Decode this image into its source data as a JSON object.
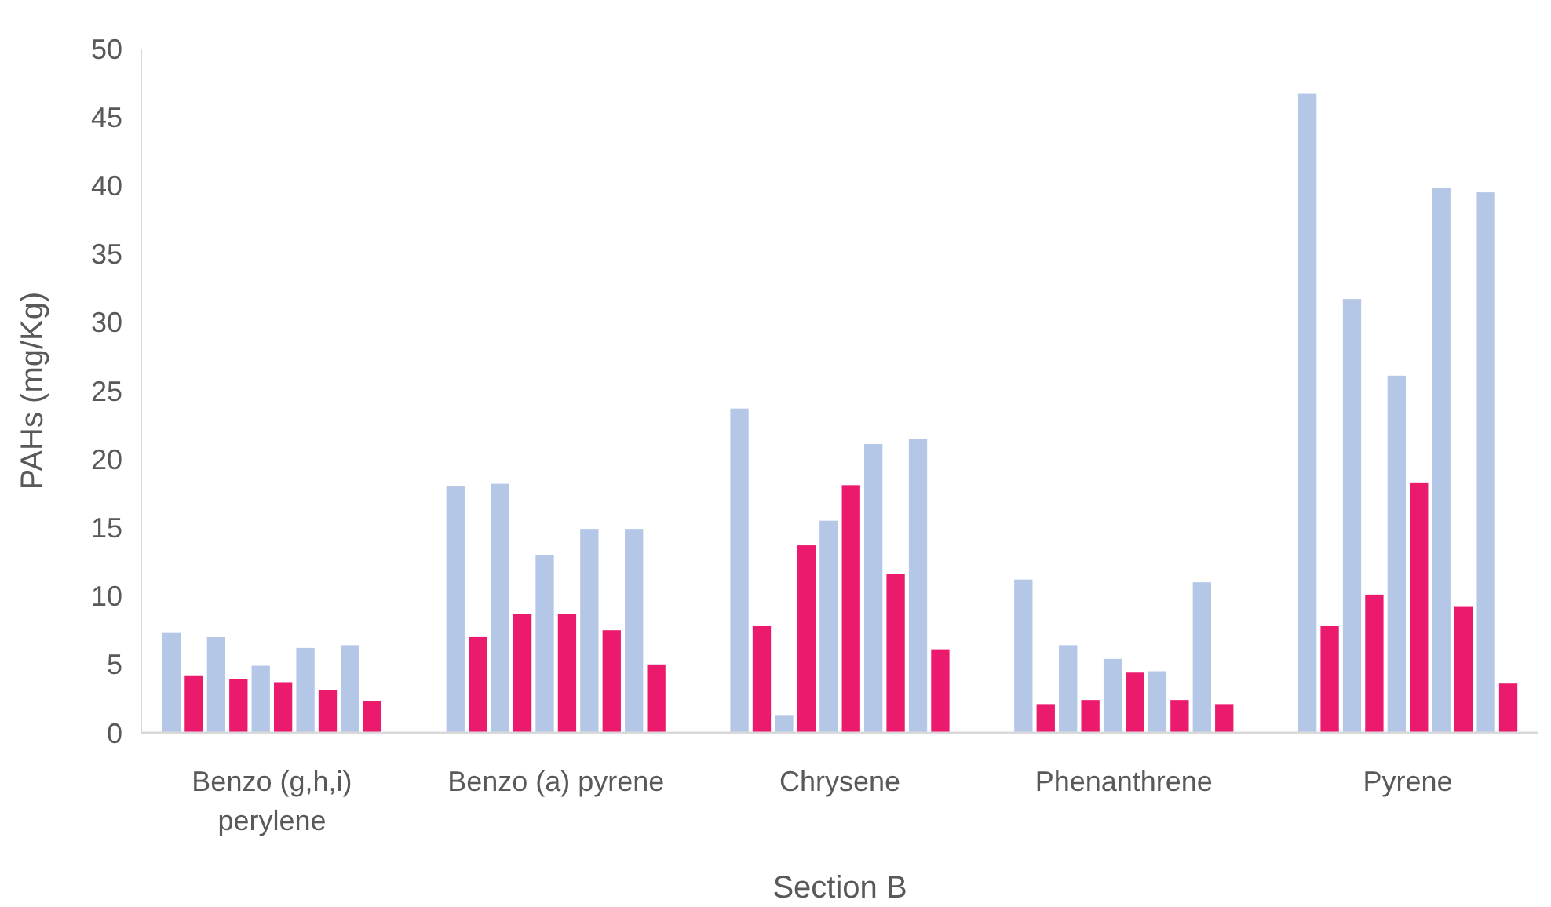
{
  "chart_data": {
    "type": "bar",
    "xlabel": "Section B",
    "ylabel": "PAHs (mg/Kg)",
    "categories": [
      "Benzo (g,h,i) perylene",
      "Benzo (a) pyrene",
      "Chrysene",
      "Phenanthrene",
      "Pyrene"
    ],
    "series": [
      {
        "color": "#b4c7e7",
        "values": [
          7.3,
          18.0,
          23.7,
          11.2,
          46.7
        ]
      },
      {
        "color": "#eb1a6d",
        "values": [
          4.2,
          7.0,
          7.8,
          2.1,
          7.8
        ]
      },
      {
        "color": "#b4c7e7",
        "values": [
          7.0,
          18.2,
          1.3,
          6.4,
          31.7
        ]
      },
      {
        "color": "#eb1a6d",
        "values": [
          3.9,
          8.7,
          13.7,
          2.4,
          10.1
        ]
      },
      {
        "color": "#b4c7e7",
        "values": [
          4.9,
          13.0,
          15.5,
          5.4,
          26.1
        ]
      },
      {
        "color": "#eb1a6d",
        "values": [
          3.7,
          8.7,
          18.1,
          4.4,
          18.3
        ]
      },
      {
        "color": "#b4c7e7",
        "values": [
          6.2,
          14.9,
          21.1,
          4.5,
          39.8
        ]
      },
      {
        "color": "#eb1a6d",
        "values": [
          3.1,
          7.5,
          11.6,
          2.4,
          9.2
        ]
      },
      {
        "color": "#b4c7e7",
        "values": [
          6.4,
          14.9,
          21.5,
          11.0,
          39.5
        ]
      },
      {
        "color": "#eb1a6d",
        "values": [
          2.3,
          5.0,
          6.1,
          2.1,
          3.6
        ]
      }
    ],
    "ylim": [
      0,
      50
    ],
    "yticks": [
      0,
      5,
      10,
      15,
      20,
      25,
      30,
      35,
      40,
      45,
      50
    ],
    "grid": false
  }
}
